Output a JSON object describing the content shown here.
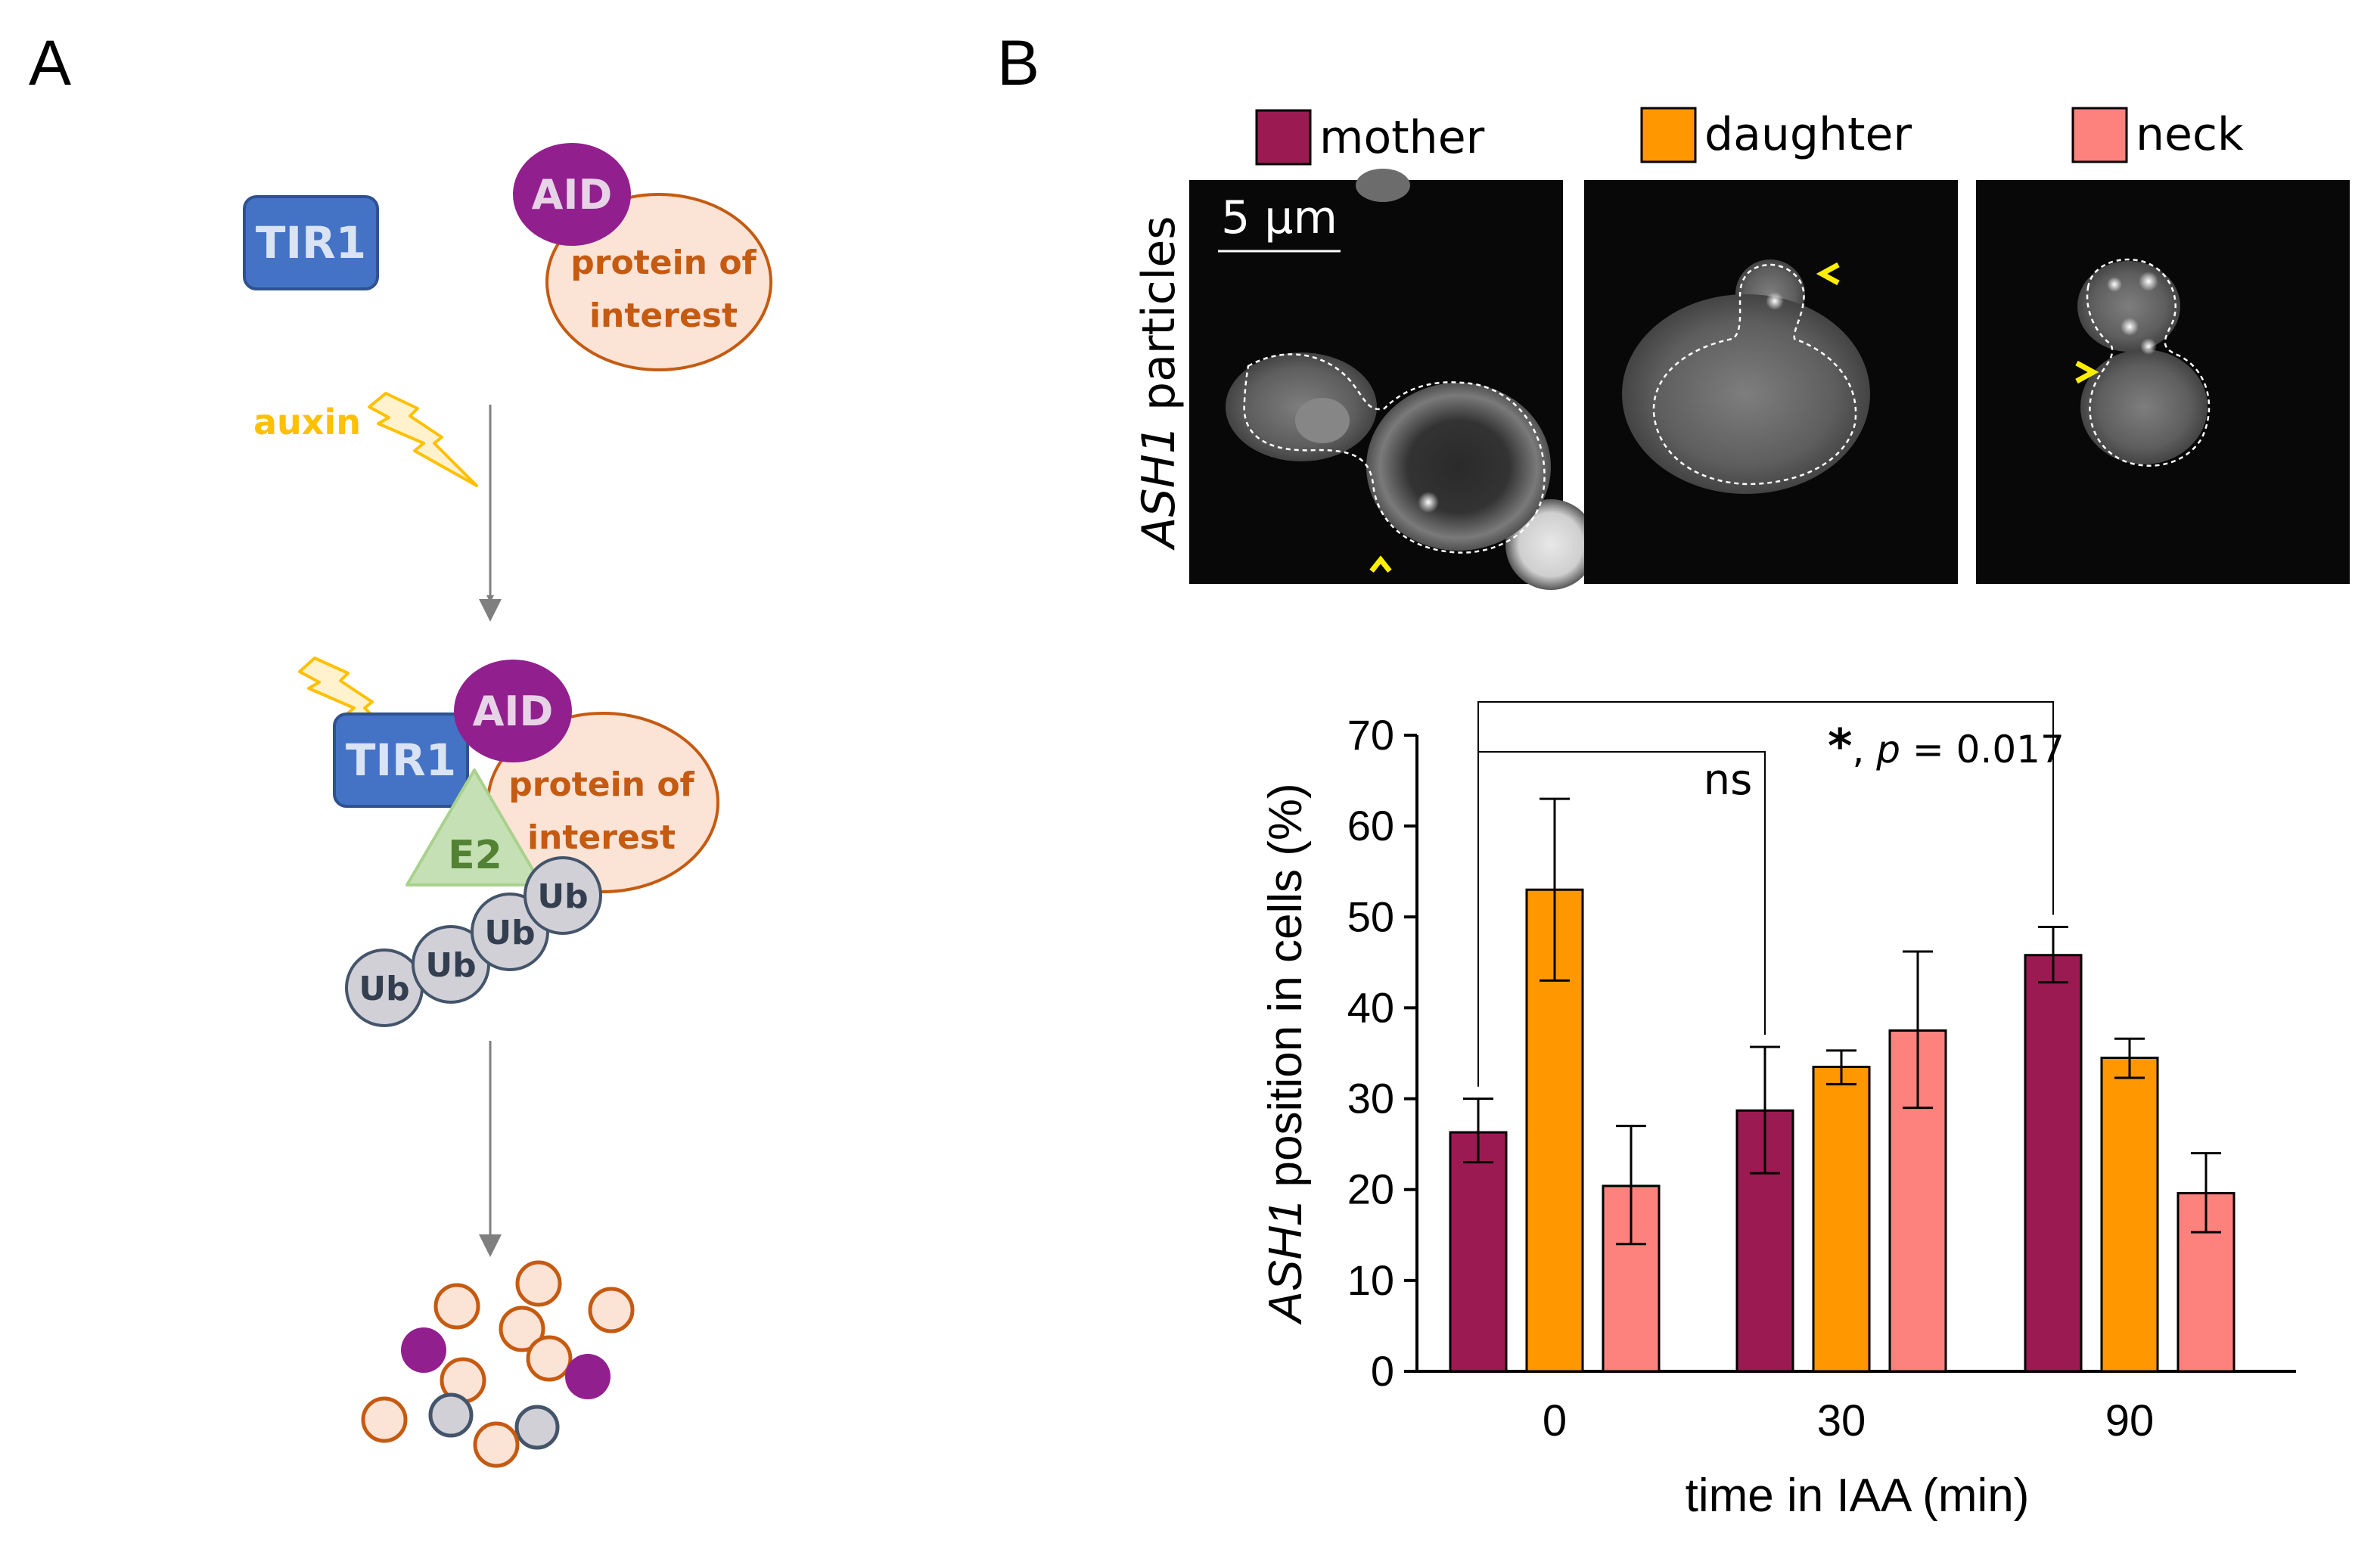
{
  "panels": {
    "a_label": "A",
    "b_label": "B"
  },
  "diagram": {
    "tir1": "TIR1",
    "aid": "AID",
    "poi_line1": "protein of",
    "poi_line2": "interest",
    "auxin": "auxin",
    "e2": "E2",
    "ub": "Ub",
    "colors": {
      "tir1_fill": "#4472c4",
      "tir1_text": "#dae3f3",
      "aid_fill": "#921f8e",
      "aid_text": "#e6d3e6",
      "poi_fill": "#fbe3d6",
      "poi_stroke": "#c55a11",
      "poi_text": "#c55a11",
      "auxin": "#ffc000",
      "e2_fill": "#c5e0b4",
      "e2_text": "#548235",
      "ub_fill": "#d0d0d6",
      "ub_stroke": "#44546a",
      "ub_text": "#333f50"
    }
  },
  "micrographs": {
    "ylabel_italic": "ASH1",
    "ylabel_rest": " particles",
    "scalebar": "5 µm",
    "legend": [
      {
        "label": "mother",
        "color": "#9c1a52"
      },
      {
        "label": "daughter",
        "color": "#ff9800"
      },
      {
        "label": "neck",
        "color": "#fd827d"
      }
    ]
  },
  "chart_data": {
    "type": "bar",
    "categories": [
      "0",
      "30",
      "90"
    ],
    "series": [
      {
        "name": "mother",
        "color": "#9c1a52",
        "values": [
          26.3,
          28.7,
          45.8
        ],
        "err_low": [
          23.0,
          21.8,
          42.8
        ],
        "err_high": [
          30.0,
          35.7,
          48.9
        ]
      },
      {
        "name": "daughter",
        "color": "#ff9800",
        "values": [
          53.0,
          33.5,
          34.5
        ],
        "err_low": [
          43.0,
          31.6,
          32.3
        ],
        "err_high": [
          63.0,
          35.3,
          36.6
        ]
      },
      {
        "name": "neck",
        "color": "#fd827d",
        "values": [
          20.4,
          37.5,
          19.6
        ],
        "err_low": [
          14.0,
          29.0,
          15.3
        ],
        "err_high": [
          27.0,
          46.2,
          24.0
        ]
      }
    ],
    "xlabel": "time in IAA (min)",
    "ylabel_italic": "ASH1",
    "ylabel_rest": " position in cells (%)",
    "ylim": [
      0,
      70
    ],
    "yticks": [
      0,
      10,
      20,
      30,
      40,
      50,
      60,
      70
    ],
    "significance": [
      {
        "label": "ns",
        "from": "0",
        "to": "30",
        "series": "mother"
      },
      {
        "star": "*",
        "rest": ", ",
        "p_italic": "p",
        "p_value": " = 0.017",
        "from": "0",
        "to": "90",
        "series": "mother"
      }
    ]
  }
}
